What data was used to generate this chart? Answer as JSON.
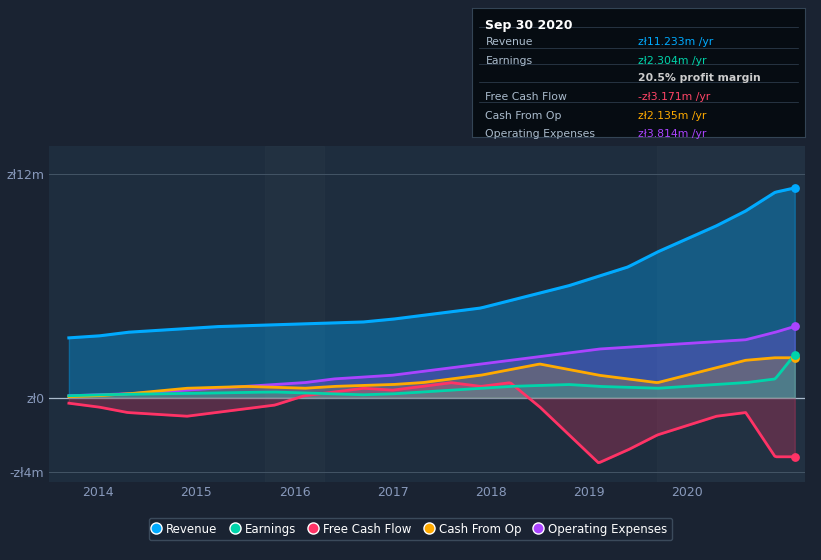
{
  "background_color": "#1a2332",
  "plot_bg_color": "#1e2d3e",
  "x_ticks": [
    2014,
    2015,
    2016,
    2017,
    2018,
    2019,
    2020
  ],
  "ylim": [
    -4.5,
    13.5
  ],
  "xlim": [
    2013.5,
    2021.2
  ],
  "series": {
    "Revenue": {
      "color": "#00aaff",
      "fill": true,
      "fill_alpha": 0.35,
      "lw": 2.2,
      "x": [
        2013.7,
        2014.0,
        2014.3,
        2014.6,
        2014.9,
        2015.2,
        2015.5,
        2015.8,
        2016.1,
        2016.4,
        2016.7,
        2017.0,
        2017.3,
        2017.6,
        2017.9,
        2018.2,
        2018.5,
        2018.8,
        2019.1,
        2019.4,
        2019.7,
        2020.0,
        2020.3,
        2020.6,
        2020.9,
        2021.1
      ],
      "y": [
        3.2,
        3.3,
        3.5,
        3.6,
        3.7,
        3.8,
        3.85,
        3.9,
        3.95,
        4.0,
        4.05,
        4.2,
        4.4,
        4.6,
        4.8,
        5.2,
        5.6,
        6.0,
        6.5,
        7.0,
        7.8,
        8.5,
        9.2,
        10.0,
        11.0,
        11.233
      ]
    },
    "Earnings": {
      "color": "#00d4aa",
      "fill": true,
      "fill_alpha": 0.2,
      "lw": 2.0,
      "x": [
        2013.7,
        2014.0,
        2014.3,
        2014.6,
        2014.9,
        2015.2,
        2015.5,
        2015.8,
        2016.1,
        2016.4,
        2016.7,
        2017.0,
        2017.3,
        2017.6,
        2017.9,
        2018.2,
        2018.5,
        2018.8,
        2019.1,
        2019.4,
        2019.7,
        2020.0,
        2020.3,
        2020.6,
        2020.9,
        2021.1
      ],
      "y": [
        0.1,
        0.15,
        0.18,
        0.2,
        0.22,
        0.25,
        0.28,
        0.3,
        0.25,
        0.2,
        0.15,
        0.2,
        0.3,
        0.4,
        0.5,
        0.6,
        0.65,
        0.7,
        0.6,
        0.55,
        0.5,
        0.6,
        0.7,
        0.8,
        1.0,
        2.304
      ]
    },
    "Free Cash Flow": {
      "color": "#ff3366",
      "fill": true,
      "fill_alpha": 0.25,
      "lw": 2.0,
      "x": [
        2013.7,
        2014.0,
        2014.3,
        2014.6,
        2014.9,
        2015.2,
        2015.5,
        2015.8,
        2016.1,
        2016.4,
        2016.7,
        2017.0,
        2017.3,
        2017.6,
        2017.9,
        2018.2,
        2018.5,
        2018.8,
        2019.1,
        2019.4,
        2019.7,
        2020.0,
        2020.3,
        2020.6,
        2020.9,
        2021.1
      ],
      "y": [
        -0.3,
        -0.5,
        -0.8,
        -0.9,
        -1.0,
        -0.8,
        -0.6,
        -0.4,
        0.1,
        0.3,
        0.5,
        0.4,
        0.6,
        0.8,
        0.6,
        0.8,
        -0.5,
        -2.0,
        -3.5,
        -2.8,
        -2.0,
        -1.5,
        -1.0,
        -0.8,
        -3.171,
        -3.171
      ]
    },
    "Cash From Op": {
      "color": "#ffaa00",
      "fill": true,
      "fill_alpha": 0.2,
      "lw": 2.0,
      "x": [
        2013.7,
        2014.0,
        2014.3,
        2014.6,
        2014.9,
        2015.2,
        2015.5,
        2015.8,
        2016.1,
        2016.4,
        2016.7,
        2017.0,
        2017.3,
        2017.6,
        2017.9,
        2018.2,
        2018.5,
        2018.8,
        2019.1,
        2019.4,
        2019.7,
        2020.0,
        2020.3,
        2020.6,
        2020.9,
        2021.1
      ],
      "y": [
        0.05,
        0.1,
        0.2,
        0.35,
        0.5,
        0.55,
        0.6,
        0.55,
        0.5,
        0.6,
        0.65,
        0.7,
        0.8,
        1.0,
        1.2,
        1.5,
        1.8,
        1.5,
        1.2,
        1.0,
        0.8,
        1.2,
        1.6,
        2.0,
        2.135,
        2.135
      ]
    },
    "Operating Expenses": {
      "color": "#aa44ff",
      "fill": true,
      "fill_alpha": 0.25,
      "lw": 2.0,
      "x": [
        2013.7,
        2014.0,
        2014.3,
        2014.6,
        2014.9,
        2015.2,
        2015.5,
        2015.8,
        2016.1,
        2016.4,
        2016.7,
        2017.0,
        2017.3,
        2017.6,
        2017.9,
        2018.2,
        2018.5,
        2018.8,
        2019.1,
        2019.4,
        2019.7,
        2020.0,
        2020.3,
        2020.6,
        2020.9,
        2021.1
      ],
      "y": [
        0.1,
        0.15,
        0.2,
        0.3,
        0.4,
        0.5,
        0.6,
        0.7,
        0.8,
        1.0,
        1.1,
        1.2,
        1.4,
        1.6,
        1.8,
        2.0,
        2.2,
        2.4,
        2.6,
        2.7,
        2.8,
        2.9,
        3.0,
        3.1,
        3.5,
        3.814
      ]
    }
  },
  "highlight_rect": {
    "x_start": 2019.7,
    "x_end": 2021.2,
    "color": "#263545",
    "alpha": 0.6
  },
  "highlight_rect2": {
    "x_start": 2015.7,
    "x_end": 2016.3,
    "color": "#263545",
    "alpha": 0.5
  },
  "tooltip": {
    "title": "Sep 30 2020",
    "title_color": "#ffffff",
    "rows": [
      {
        "label": "Revenue",
        "label_color": "#aabbcc",
        "value": "zł11.233m /yr",
        "value_color": "#00aaff"
      },
      {
        "label": "Earnings",
        "label_color": "#aabbcc",
        "value": "zł2.304m /yr",
        "value_color": "#00d4aa"
      },
      {
        "label": "",
        "label_color": "#aabbcc",
        "value": "20.5% profit margin",
        "value_color": "#cccccc",
        "bold": true
      },
      {
        "label": "Free Cash Flow",
        "label_color": "#aabbcc",
        "value": "-zł3.171m /yr",
        "value_color": "#ff4466"
      },
      {
        "label": "Cash From Op",
        "label_color": "#aabbcc",
        "value": "zł2.135m /yr",
        "value_color": "#ffaa00"
      },
      {
        "label": "Operating Expenses",
        "label_color": "#aabbcc",
        "value": "zł3.814m /yr",
        "value_color": "#aa44ff"
      }
    ]
  },
  "legend": [
    {
      "label": "Revenue",
      "color": "#00aaff"
    },
    {
      "label": "Earnings",
      "color": "#00d4aa"
    },
    {
      "label": "Free Cash Flow",
      "color": "#ff3366"
    },
    {
      "label": "Cash From Op",
      "color": "#ffaa00"
    },
    {
      "label": "Operating Expenses",
      "color": "#aa44ff"
    }
  ]
}
